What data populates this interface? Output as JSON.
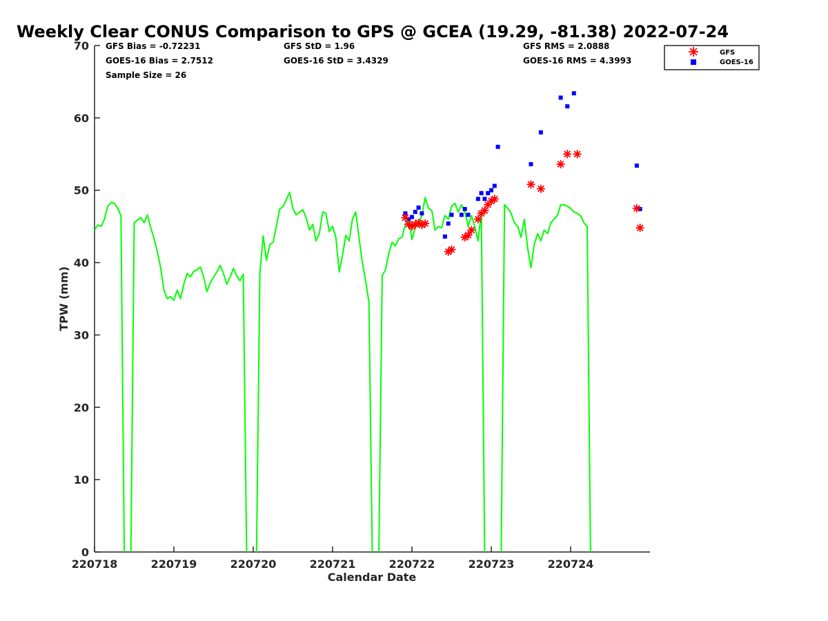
{
  "chart_data": {
    "type": "line",
    "title": "Weekly Clear CONUS Comparison to GPS @ GCEA (19.29, -81.38) 2022-07-24",
    "xlabel": "Calendar Date",
    "ylabel": "TPW (mm)",
    "ylim": [
      0,
      70
    ],
    "xlim": [
      "2022-07-18T00:00",
      "2022-07-24T23:00"
    ],
    "x_ticks": [
      "220718",
      "220719",
      "220720",
      "220721",
      "220722",
      "220723",
      "220724"
    ],
    "y_ticks": [
      "0",
      "10",
      "20",
      "30",
      "40",
      "50",
      "60",
      "70"
    ],
    "grid": false,
    "legend_position": "top-right-outside",
    "stats": {
      "gfs_bias": "GFS Bias = -0.72231",
      "goes_bias": "GOES-16 Bias = 2.7512",
      "sample_size": "Sample Size = 26",
      "gfs_std": "GFS StD = 1.96",
      "goes_std": "GOES-16 StD = 3.4329",
      "gfs_rms": "GFS RMS = 2.0888",
      "goes_rms": "GOES-16 RMS = 4.3993"
    },
    "series": [
      {
        "key": "gps",
        "color": "#00ff00",
        "kind": "line",
        "points": [
          [
            "2022-07-18T00:00",
            44.5
          ],
          [
            "2022-07-18T01:00",
            45.2
          ],
          [
            "2022-07-18T02:00",
            45.0
          ],
          [
            "2022-07-18T03:00",
            46.0
          ],
          [
            "2022-07-18T04:00",
            47.8
          ],
          [
            "2022-07-18T05:00",
            48.3
          ],
          [
            "2022-07-18T06:00",
            48.2
          ],
          [
            "2022-07-18T07:00",
            47.5
          ],
          [
            "2022-07-18T08:00",
            46.5
          ],
          [
            "2022-07-18T09:00",
            0
          ],
          null,
          [
            "2022-07-18T11:00",
            0
          ],
          [
            "2022-07-18T12:00",
            45.5
          ],
          [
            "2022-07-18T13:00",
            45.9
          ],
          [
            "2022-07-18T14:00",
            46.2
          ],
          [
            "2022-07-18T15:00",
            45.5
          ],
          [
            "2022-07-18T16:00",
            46.6
          ],
          [
            "2022-07-18T17:00",
            44.8
          ],
          [
            "2022-07-18T18:00",
            43.3
          ],
          [
            "2022-07-18T19:00",
            41.5
          ],
          [
            "2022-07-18T20:00",
            39.3
          ],
          [
            "2022-07-18T21:00",
            36.2
          ],
          [
            "2022-07-18T22:00",
            35.0
          ],
          [
            "2022-07-18T23:00",
            35.3
          ],
          [
            "2022-07-19T00:00",
            34.8
          ],
          [
            "2022-07-19T01:00",
            36.2
          ],
          [
            "2022-07-19T02:00",
            35.0
          ],
          [
            "2022-07-19T03:00",
            37.0
          ],
          [
            "2022-07-19T04:00",
            38.5
          ],
          [
            "2022-07-19T05:00",
            38.0
          ],
          [
            "2022-07-19T06:00",
            38.8
          ],
          [
            "2022-07-19T07:00",
            39.0
          ],
          [
            "2022-07-19T08:00",
            39.4
          ],
          [
            "2022-07-19T09:00",
            38.0
          ],
          [
            "2022-07-19T10:00",
            36.0
          ],
          [
            "2022-07-19T11:00",
            37.2
          ],
          [
            "2022-07-19T12:00",
            38.0
          ],
          [
            "2022-07-19T13:00",
            38.7
          ],
          [
            "2022-07-19T14:00",
            39.6
          ],
          [
            "2022-07-19T15:00",
            38.5
          ],
          [
            "2022-07-19T16:00",
            37.0
          ],
          [
            "2022-07-19T17:00",
            38.0
          ],
          [
            "2022-07-19T18:00",
            39.2
          ],
          [
            "2022-07-19T19:00",
            38.2
          ],
          [
            "2022-07-19T20:00",
            37.5
          ],
          [
            "2022-07-19T21:00",
            38.4
          ],
          [
            "2022-07-19T22:00",
            0
          ],
          null,
          [
            "2022-07-20T01:00",
            0
          ],
          [
            "2022-07-20T02:00",
            38.5
          ],
          [
            "2022-07-20T03:00",
            43.7
          ],
          [
            "2022-07-20T04:00",
            40.3
          ],
          [
            "2022-07-20T05:00",
            42.5
          ],
          [
            "2022-07-20T06:00",
            42.8
          ],
          [
            "2022-07-20T07:00",
            45.0
          ],
          [
            "2022-07-20T08:00",
            47.4
          ],
          [
            "2022-07-20T09:00",
            47.7
          ],
          [
            "2022-07-20T10:00",
            48.7
          ],
          [
            "2022-07-20T11:00",
            49.7
          ],
          [
            "2022-07-20T12:00",
            47.5
          ],
          [
            "2022-07-20T13:00",
            46.6
          ],
          [
            "2022-07-20T14:00",
            47.0
          ],
          [
            "2022-07-20T15:00",
            47.3
          ],
          [
            "2022-07-20T16:00",
            46.2
          ],
          [
            "2022-07-20T17:00",
            44.5
          ],
          [
            "2022-07-20T18:00",
            45.3
          ],
          [
            "2022-07-20T19:00",
            43.0
          ],
          [
            "2022-07-20T20:00",
            44.0
          ],
          [
            "2022-07-20T21:00",
            47.0
          ],
          [
            "2022-07-20T22:00",
            46.8
          ],
          [
            "2022-07-20T23:00",
            44.3
          ],
          [
            "2022-07-21T00:00",
            45.0
          ],
          [
            "2022-07-21T01:00",
            43.5
          ],
          [
            "2022-07-21T02:00",
            38.7
          ],
          [
            "2022-07-21T03:00",
            41.0
          ],
          [
            "2022-07-21T04:00",
            43.8
          ],
          [
            "2022-07-21T05:00",
            43.0
          ],
          [
            "2022-07-21T06:00",
            46.0
          ],
          [
            "2022-07-21T07:00",
            47.0
          ],
          [
            "2022-07-21T08:00",
            43.5
          ],
          [
            "2022-07-21T09:00",
            40.0
          ],
          [
            "2022-07-21T10:00",
            37.5
          ],
          [
            "2022-07-21T11:00",
            34.5
          ],
          [
            "2022-07-21T12:00",
            0
          ],
          null,
          [
            "2022-07-21T14:00",
            0
          ],
          [
            "2022-07-21T15:00",
            38.2
          ],
          [
            "2022-07-21T16:00",
            39.0
          ],
          [
            "2022-07-21T17:00",
            41.3
          ],
          [
            "2022-07-21T18:00",
            42.8
          ],
          [
            "2022-07-21T19:00",
            42.3
          ],
          [
            "2022-07-21T20:00",
            43.3
          ],
          [
            "2022-07-21T21:00",
            43.5
          ],
          [
            "2022-07-21T22:00",
            45.3
          ],
          [
            "2022-07-21T23:00",
            46.0
          ],
          [
            "2022-07-22T00:00",
            43.2
          ],
          [
            "2022-07-22T01:00",
            44.8
          ],
          [
            "2022-07-22T02:00",
            45.5
          ],
          [
            "2022-07-22T03:00",
            46.5
          ],
          [
            "2022-07-22T04:00",
            49.0
          ],
          [
            "2022-07-22T05:00",
            47.5
          ],
          [
            "2022-07-22T06:00",
            47.2
          ],
          [
            "2022-07-22T07:00",
            44.5
          ],
          [
            "2022-07-22T08:00",
            45.0
          ],
          [
            "2022-07-22T09:00",
            44.8
          ],
          [
            "2022-07-22T10:00",
            46.5
          ],
          [
            "2022-07-22T11:00",
            46.0
          ],
          [
            "2022-07-22T12:00",
            47.8
          ],
          [
            "2022-07-22T13:00",
            48.2
          ],
          [
            "2022-07-22T14:00",
            47.0
          ],
          [
            "2022-07-22T15:00",
            48.0
          ],
          [
            "2022-07-22T16:00",
            47.0
          ],
          [
            "2022-07-22T17:00",
            45.0
          ],
          [
            "2022-07-22T18:00",
            46.5
          ],
          [
            "2022-07-22T19:00",
            45.0
          ],
          [
            "2022-07-22T20:00",
            43.0
          ],
          [
            "2022-07-22T21:00",
            46.8
          ],
          [
            "2022-07-22T22:00",
            0
          ],
          null,
          [
            "2022-07-23T03:00",
            0
          ],
          [
            "2022-07-23T04:00",
            48.0
          ],
          [
            "2022-07-23T05:00",
            47.5
          ],
          [
            "2022-07-23T06:00",
            46.8
          ],
          [
            "2022-07-23T07:00",
            45.5
          ],
          [
            "2022-07-23T08:00",
            45.0
          ],
          [
            "2022-07-23T09:00",
            43.5
          ],
          [
            "2022-07-23T10:00",
            46.0
          ],
          [
            "2022-07-23T11:00",
            42.0
          ],
          [
            "2022-07-23T12:00",
            39.3
          ],
          [
            "2022-07-23T13:00",
            42.5
          ],
          [
            "2022-07-23T14:00",
            44.0
          ],
          [
            "2022-07-23T15:00",
            43.0
          ],
          [
            "2022-07-23T16:00",
            44.5
          ],
          [
            "2022-07-23T17:00",
            44.0
          ],
          [
            "2022-07-23T18:00",
            45.5
          ],
          [
            "2022-07-23T19:00",
            46.0
          ],
          [
            "2022-07-23T20:00",
            46.5
          ],
          [
            "2022-07-23T21:00",
            48.0
          ],
          [
            "2022-07-23T22:00",
            48.0
          ],
          [
            "2022-07-23T23:00",
            47.8
          ],
          [
            "2022-07-24T00:00",
            47.5
          ],
          [
            "2022-07-24T01:00",
            47.0
          ],
          [
            "2022-07-24T02:00",
            46.8
          ],
          [
            "2022-07-24T03:00",
            46.5
          ],
          [
            "2022-07-24T04:00",
            45.5
          ],
          [
            "2022-07-24T05:00",
            45.0
          ],
          [
            "2022-07-24T06:00",
            0
          ]
        ]
      },
      {
        "key": "gfs",
        "name": "GFS",
        "color": "#ff0000",
        "kind": "asterisk",
        "points": [
          [
            "2022-07-21T22:00",
            46.2
          ],
          [
            "2022-07-21T23:00",
            45.3
          ],
          [
            "2022-07-22T00:00",
            45.0
          ],
          [
            "2022-07-22T01:00",
            45.3
          ],
          [
            "2022-07-22T02:00",
            45.5
          ],
          [
            "2022-07-22T03:00",
            45.2
          ],
          [
            "2022-07-22T04:00",
            45.4
          ],
          [
            "2022-07-22T11:00",
            41.5
          ],
          [
            "2022-07-22T12:00",
            41.8
          ],
          [
            "2022-07-22T16:00",
            43.5
          ],
          [
            "2022-07-22T17:00",
            43.8
          ],
          [
            "2022-07-22T18:00",
            44.5
          ],
          [
            "2022-07-22T20:00",
            46.0
          ],
          [
            "2022-07-22T21:00",
            46.8
          ],
          [
            "2022-07-22T22:00",
            47.2
          ],
          [
            "2022-07-22T23:00",
            48.0
          ],
          [
            "2022-07-23T00:00",
            48.5
          ],
          [
            "2022-07-23T01:00",
            48.8
          ],
          [
            "2022-07-23T12:00",
            50.8
          ],
          [
            "2022-07-23T15:00",
            50.2
          ],
          [
            "2022-07-23T21:00",
            53.6
          ],
          [
            "2022-07-23T23:00",
            55.0
          ],
          [
            "2022-07-24T02:00",
            55.0
          ],
          [
            "2022-07-24T20:00",
            47.5
          ],
          [
            "2022-07-24T21:00",
            44.8
          ]
        ]
      },
      {
        "key": "goes",
        "name": "GOES-16",
        "color": "#0000ff",
        "kind": "square",
        "points": [
          [
            "2022-07-21T22:00",
            46.8
          ],
          [
            "2022-07-21T23:00",
            46.0
          ],
          [
            "2022-07-22T00:00",
            46.3
          ],
          [
            "2022-07-22T01:00",
            47.0
          ],
          [
            "2022-07-22T02:00",
            47.6
          ],
          [
            "2022-07-22T03:00",
            46.8
          ],
          [
            "2022-07-22T10:00",
            43.6
          ],
          [
            "2022-07-22T11:00",
            45.4
          ],
          [
            "2022-07-22T12:00",
            46.6
          ],
          [
            "2022-07-22T15:00",
            46.6
          ],
          [
            "2022-07-22T16:00",
            47.4
          ],
          [
            "2022-07-22T17:00",
            46.6
          ],
          [
            "2022-07-22T20:00",
            48.8
          ],
          [
            "2022-07-22T21:00",
            49.6
          ],
          [
            "2022-07-22T22:00",
            48.8
          ],
          [
            "2022-07-22T23:00",
            49.6
          ],
          [
            "2022-07-23T00:00",
            50.0
          ],
          [
            "2022-07-23T01:00",
            50.6
          ],
          [
            "2022-07-23T02:00",
            56.0
          ],
          [
            "2022-07-23T12:00",
            53.6
          ],
          [
            "2022-07-23T15:00",
            58.0
          ],
          [
            "2022-07-23T21:00",
            62.8
          ],
          [
            "2022-07-23T23:00",
            61.6
          ],
          [
            "2022-07-24T01:00",
            63.4
          ],
          [
            "2022-07-24T20:00",
            53.4
          ],
          [
            "2022-07-24T21:00",
            47.4
          ]
        ]
      }
    ]
  }
}
